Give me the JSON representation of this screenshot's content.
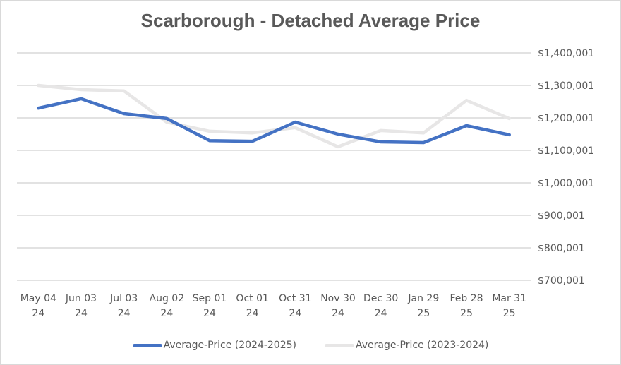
{
  "chart_data": {
    "type": "line",
    "title": "Scarborough - Detached Average Price",
    "xlabel": "",
    "ylabel": "",
    "categories": [
      [
        "May 04",
        "24"
      ],
      [
        "Jun 03",
        "24"
      ],
      [
        "Jul 03",
        "24"
      ],
      [
        "Aug 02",
        "24"
      ],
      [
        "Sep 01",
        "24"
      ],
      [
        "Oct 01",
        "24"
      ],
      [
        "Oct 31",
        "24"
      ],
      [
        "Nov 30",
        "24"
      ],
      [
        "Dec 30",
        "24"
      ],
      [
        "Jan 29",
        "25"
      ],
      [
        "Feb 28",
        "25"
      ],
      [
        "Mar 31",
        "25"
      ]
    ],
    "series": [
      {
        "name": "Average-Price (2024-2025)",
        "color": "#4472c4",
        "values": [
          1230000,
          1259000,
          1213000,
          1198000,
          1130000,
          1128000,
          1187000,
          1150000,
          1126000,
          1124000,
          1176000,
          1148000
        ]
      },
      {
        "name": "Average-Price (2023-2024)",
        "color": "#e7e6e6",
        "values": [
          1300000,
          1287000,
          1283000,
          1187000,
          1159000,
          1154000,
          1170000,
          1111000,
          1161000,
          1154000,
          1254000,
          1198000
        ]
      }
    ],
    "ylim": [
      700001,
      1400001
    ],
    "yticks": [
      1400001,
      1300001,
      1200001,
      1100001,
      1000001,
      900001,
      800001,
      700001
    ],
    "ytick_labels": [
      "$1,400,001",
      "$1,300,001",
      "$1,200,001",
      "$1,100,001",
      "$1,000,001",
      "$900,001",
      "$800,001",
      "$700,001"
    ],
    "y_axis_side": "right",
    "grid": true,
    "legend_position": "bottom"
  }
}
